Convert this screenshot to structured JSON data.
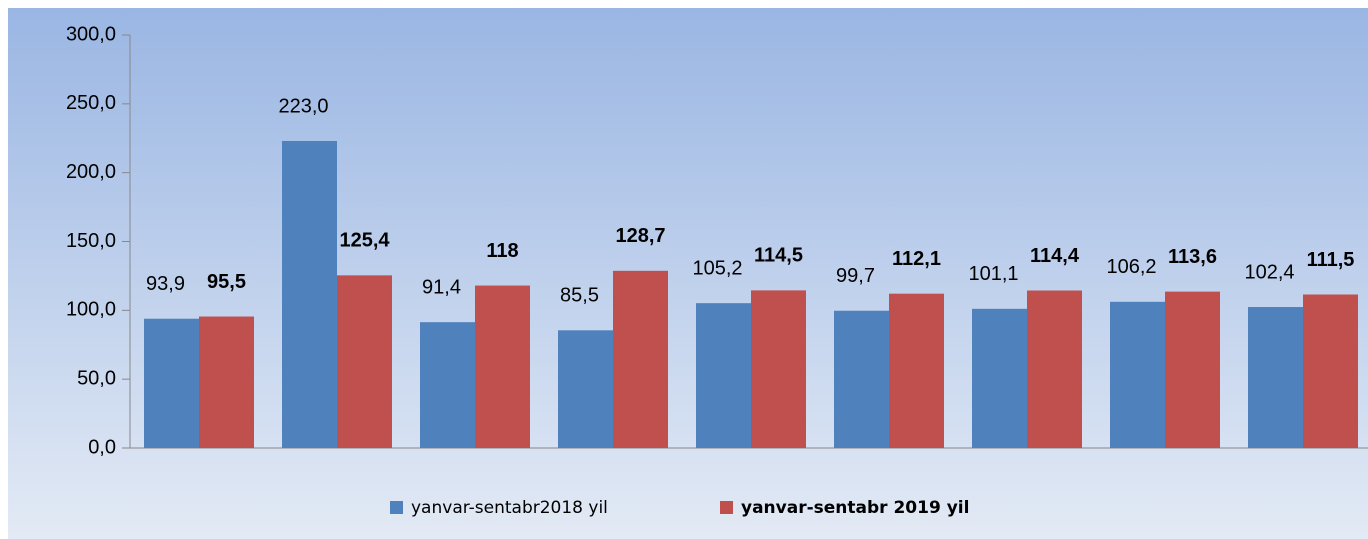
{
  "chart_data": {
    "type": "bar",
    "categories": [
      null,
      null,
      null,
      null,
      null,
      null,
      null,
      null,
      null
    ],
    "series": [
      {
        "name": "yanvar-sentabr2018 yil",
        "color": "#4f81bd",
        "values": [
          93.9,
          223.0,
          91.4,
          85.5,
          105.2,
          99.7,
          101.1,
          106.2,
          102.4
        ],
        "value_labels": [
          "93,9",
          "223,0",
          "91,4",
          "85,5",
          "105,2",
          "99,7",
          "101,1",
          "106,2",
          "102,4"
        ]
      },
      {
        "name": "yanvar-sentabr 2019 yil",
        "color": "#c0504d",
        "values": [
          95.5,
          125.4,
          118,
          128.7,
          114.5,
          112.1,
          114.4,
          113.6,
          111.5
        ],
        "value_labels": [
          "95,5",
          "125,4",
          "118",
          "128,7",
          "114,5",
          "112,1",
          "114,4",
          "113,6",
          "111,5"
        ]
      }
    ],
    "ylim": [
      0,
      300
    ],
    "yticks": [
      {
        "value": 0,
        "label": "0,0"
      },
      {
        "value": 50,
        "label": "50,0"
      },
      {
        "value": 100,
        "label": "100,0"
      },
      {
        "value": 150,
        "label": "150,0"
      },
      {
        "value": 200,
        "label": "200,0"
      },
      {
        "value": 250,
        "label": "250,0"
      },
      {
        "value": 300,
        "label": "300,0"
      }
    ],
    "legend": "bottom"
  }
}
